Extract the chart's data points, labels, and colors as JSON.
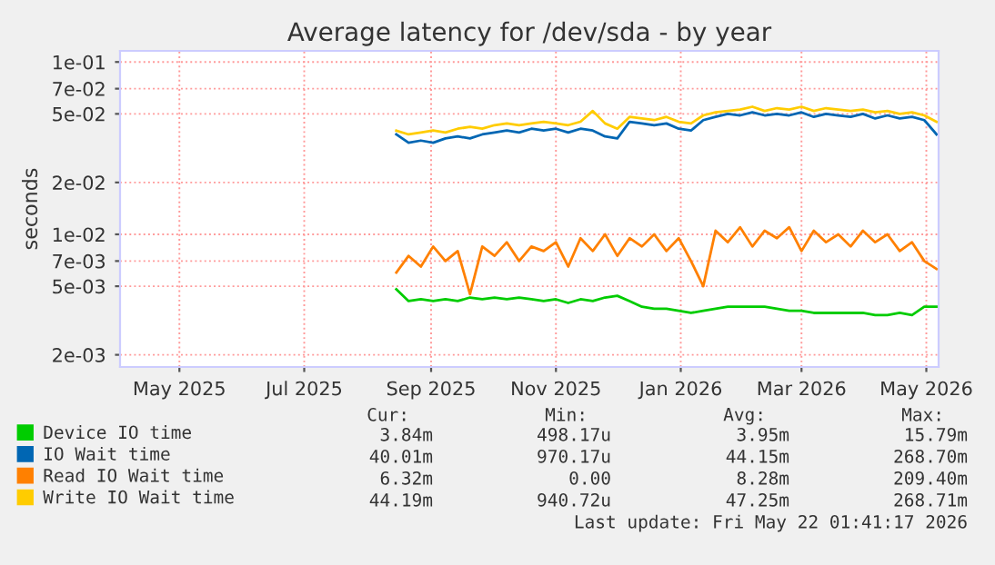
{
  "chart_data": {
    "type": "line",
    "title": "Average latency for /dev/sda - by year",
    "ylabel": "seconds",
    "x": [
      "2025-08-30",
      "2025-09-05",
      "2025-09-11",
      "2025-09-17",
      "2025-09-23",
      "2025-09-29",
      "2025-10-05",
      "2025-10-11",
      "2025-10-17",
      "2025-10-23",
      "2025-10-29",
      "2025-11-04",
      "2025-11-10",
      "2025-11-16",
      "2025-11-22",
      "2025-11-28",
      "2025-12-04",
      "2025-12-10",
      "2025-12-16",
      "2025-12-22",
      "2025-12-28",
      "2026-01-03",
      "2026-01-09",
      "2026-01-15",
      "2026-01-21",
      "2026-01-27",
      "2026-02-02",
      "2026-02-08",
      "2026-02-14",
      "2026-02-20",
      "2026-02-26",
      "2026-03-04",
      "2026-03-10",
      "2026-03-16",
      "2026-03-22",
      "2026-03-28",
      "2026-04-03",
      "2026-04-09",
      "2026-04-15",
      "2026-04-21",
      "2026-04-27",
      "2026-05-03",
      "2026-05-09",
      "2026-05-15",
      "2026-05-21"
    ],
    "series": [
      {
        "name": "Device IO time",
        "color": "#00cc00",
        "values": [
          0.0048,
          0.0041,
          0.0042,
          0.0041,
          0.0042,
          0.0041,
          0.0043,
          0.0042,
          0.0043,
          0.0042,
          0.0043,
          0.0042,
          0.0041,
          0.0042,
          0.004,
          0.0042,
          0.0041,
          0.0043,
          0.0044,
          0.0041,
          0.0038,
          0.0037,
          0.0037,
          0.0036,
          0.0035,
          0.0036,
          0.0037,
          0.0038,
          0.0038,
          0.0038,
          0.0038,
          0.0037,
          0.0036,
          0.0036,
          0.0035,
          0.0035,
          0.0035,
          0.0035,
          0.0035,
          0.0034,
          0.0034,
          0.0035,
          0.0034,
          0.0038,
          0.0038
        ]
      },
      {
        "name": "IO Wait time",
        "color": "#0066b3",
        "values": [
          0.038,
          0.034,
          0.035,
          0.034,
          0.036,
          0.037,
          0.036,
          0.038,
          0.039,
          0.04,
          0.039,
          0.041,
          0.04,
          0.041,
          0.039,
          0.041,
          0.04,
          0.037,
          0.036,
          0.045,
          0.044,
          0.043,
          0.044,
          0.041,
          0.04,
          0.046,
          0.048,
          0.05,
          0.049,
          0.051,
          0.049,
          0.05,
          0.049,
          0.051,
          0.048,
          0.05,
          0.049,
          0.048,
          0.05,
          0.047,
          0.049,
          0.047,
          0.048,
          0.046,
          0.038
        ]
      },
      {
        "name": "Read IO Wait time",
        "color": "#ff8000",
        "values": [
          0.006,
          0.0075,
          0.0065,
          0.0085,
          0.007,
          0.008,
          0.0045,
          0.0085,
          0.0075,
          0.009,
          0.007,
          0.0085,
          0.008,
          0.009,
          0.0065,
          0.0095,
          0.008,
          0.01,
          0.0075,
          0.0095,
          0.0085,
          0.01,
          0.008,
          0.0095,
          0.007,
          0.005,
          0.0105,
          0.009,
          0.011,
          0.0085,
          0.0105,
          0.0095,
          0.011,
          0.008,
          0.0105,
          0.009,
          0.01,
          0.0085,
          0.0105,
          0.009,
          0.01,
          0.008,
          0.009,
          0.007,
          0.0063
        ]
      },
      {
        "name": "Write IO Wait time",
        "color": "#ffcc00",
        "values": [
          0.04,
          0.038,
          0.039,
          0.04,
          0.039,
          0.041,
          0.042,
          0.041,
          0.043,
          0.044,
          0.043,
          0.044,
          0.045,
          0.044,
          0.043,
          0.045,
          0.052,
          0.044,
          0.041,
          0.048,
          0.047,
          0.046,
          0.048,
          0.045,
          0.044,
          0.049,
          0.051,
          0.052,
          0.053,
          0.055,
          0.052,
          0.054,
          0.053,
          0.055,
          0.052,
          0.054,
          0.053,
          0.052,
          0.053,
          0.051,
          0.052,
          0.05,
          0.051,
          0.049,
          0.045
        ]
      }
    ],
    "xlim": [
      "2025-04-17",
      "2026-05-22"
    ],
    "xticks": [
      {
        "value": "2025-05-16",
        "label": "May 2025"
      },
      {
        "value": "2025-07-16",
        "label": "Jul 2025"
      },
      {
        "value": "2025-09-16",
        "label": "Sep 2025"
      },
      {
        "value": "2025-11-16",
        "label": "Nov 2025"
      },
      {
        "value": "2026-01-16",
        "label": "Jan 2026"
      },
      {
        "value": "2026-03-16",
        "label": "Mar 2026"
      },
      {
        "value": "2026-05-16",
        "label": "May 2026"
      }
    ],
    "log": "y",
    "ylim": [
      0.0017,
      0.116
    ],
    "yticks": [
      {
        "value": 0.002,
        "label": "2e-03"
      },
      {
        "value": 0.005,
        "label": "5e-03"
      },
      {
        "value": 0.007,
        "label": "7e-03"
      },
      {
        "value": 0.01,
        "label": "1e-02"
      },
      {
        "value": 0.02,
        "label": "2e-02"
      },
      {
        "value": 0.05,
        "label": "5e-02"
      },
      {
        "value": 0.07,
        "label": "7e-02"
      },
      {
        "value": 0.1,
        "label": "1e-01"
      }
    ],
    "grid": true,
    "legend": "bottom",
    "line_style": "solid",
    "annotations": [
      "Cur:",
      "Min:",
      "Avg:",
      "Max:",
      "3.84m",
      "498.17u",
      "3.95m",
      "15.79m",
      "40.01m",
      "970.17u",
      "44.15m",
      "268.70m",
      "6.32m",
      "0.00",
      "8.28m",
      "209.40m",
      "44.19m",
      "940.72u",
      "47.25m",
      "268.71m",
      "Last update: Fri May 22 01:41:17 2026"
    ]
  }
}
